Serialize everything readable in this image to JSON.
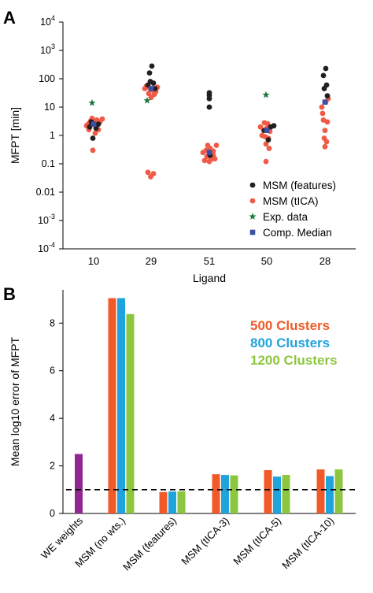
{
  "colors": {
    "features": "#231f20",
    "tica": "#f05a46",
    "exp": "#1a7a3a",
    "median": "#3b4fa3",
    "c500": "#f05a28",
    "c800": "#1fa3dc",
    "c1200": "#8cc63f",
    "we": "#92278f",
    "axis": "#000000"
  },
  "chart_data": [
    {
      "panel": "A",
      "type": "scatter",
      "ylabel": "MFPT [min]",
      "xlabel": "Ligand",
      "yscale": "log",
      "ylim": [
        0.0001,
        10000
      ],
      "yticks": [
        {
          "v": 10000,
          "b": "10",
          "e": "4"
        },
        {
          "v": 1000,
          "b": "10",
          "e": "3"
        },
        {
          "v": 100,
          "b": "100",
          "e": ""
        },
        {
          "v": 10,
          "b": "10",
          "e": ""
        },
        {
          "v": 1,
          "b": "1",
          "e": ""
        },
        {
          "v": 0.1,
          "b": "0.1",
          "e": ""
        },
        {
          "v": 0.01,
          "b": "0.01",
          "e": ""
        },
        {
          "v": 0.001,
          "b": "10",
          "e": "-3"
        },
        {
          "v": 0.0001,
          "b": "10",
          "e": "-4"
        }
      ],
      "categories": [
        "10",
        "29",
        "51",
        "50",
        "28"
      ],
      "series": [
        {
          "name": "MSM (features)",
          "marker": "circle",
          "color_key": "features",
          "points": [
            {
              "cat": 0,
              "dx": -0.5,
              "y": 2.0
            },
            {
              "cat": 0,
              "dx": 0.3,
              "y": 1.8
            },
            {
              "cat": 0,
              "dx": -0.1,
              "y": 0.8
            },
            {
              "cat": 0,
              "dx": 0.6,
              "y": 2.5
            },
            {
              "cat": 0,
              "dx": -0.3,
              "y": 3.0
            },
            {
              "cat": 1,
              "dx": 0.1,
              "y": 280
            },
            {
              "cat": 1,
              "dx": -0.2,
              "y": 160
            },
            {
              "cat": 1,
              "dx": 0.3,
              "y": 70
            },
            {
              "cat": 1,
              "dx": -0.4,
              "y": 60
            },
            {
              "cat": 1,
              "dx": 0.5,
              "y": 45
            },
            {
              "cat": 1,
              "dx": -0.1,
              "y": 80
            },
            {
              "cat": 2,
              "dx": 0.0,
              "y": 32
            },
            {
              "cat": 2,
              "dx": 0.0,
              "y": 26
            },
            {
              "cat": 2,
              "dx": 0.0,
              "y": 20
            },
            {
              "cat": 2,
              "dx": 0.0,
              "y": 10
            },
            {
              "cat": 2,
              "dx": 0.1,
              "y": 0.2
            },
            {
              "cat": 3,
              "dx": 0.5,
              "y": 2.0
            },
            {
              "cat": 3,
              "dx": 0.9,
              "y": 2.2
            },
            {
              "cat": 3,
              "dx": -0.3,
              "y": 1.5
            },
            {
              "cat": 3,
              "dx": 0.2,
              "y": 0.7
            },
            {
              "cat": 4,
              "dx": 0.1,
              "y": 230
            },
            {
              "cat": 4,
              "dx": -0.2,
              "y": 130
            },
            {
              "cat": 4,
              "dx": 0.2,
              "y": 60
            },
            {
              "cat": 4,
              "dx": -0.1,
              "y": 45
            },
            {
              "cat": 4,
              "dx": 0.3,
              "y": 25
            }
          ]
        },
        {
          "name": "MSM (tICA)",
          "marker": "circle",
          "color_key": "tica",
          "points": [
            {
              "cat": 0,
              "dx": -0.7,
              "y": 2.5
            },
            {
              "cat": 0,
              "dx": -0.4,
              "y": 3.2
            },
            {
              "cat": 0,
              "dx": 0.0,
              "y": 2.8
            },
            {
              "cat": 0,
              "dx": 0.4,
              "y": 3.5
            },
            {
              "cat": 0,
              "dx": 0.8,
              "y": 3.0
            },
            {
              "cat": 0,
              "dx": -0.6,
              "y": 1.6
            },
            {
              "cat": 0,
              "dx": 0.2,
              "y": 1.2
            },
            {
              "cat": 0,
              "dx": 0.6,
              "y": 1.6
            },
            {
              "cat": 0,
              "dx": -0.2,
              "y": 4.0
            },
            {
              "cat": 0,
              "dx": 1.1,
              "y": 3.8
            },
            {
              "cat": 0,
              "dx": -0.1,
              "y": 0.3
            },
            {
              "cat": 0,
              "dx": -0.9,
              "y": 2.2
            },
            {
              "cat": 1,
              "dx": -0.6,
              "y": 55
            },
            {
              "cat": 1,
              "dx": -0.2,
              "y": 48
            },
            {
              "cat": 1,
              "dx": 0.2,
              "y": 40
            },
            {
              "cat": 1,
              "dx": 0.6,
              "y": 35
            },
            {
              "cat": 1,
              "dx": -0.3,
              "y": 30
            },
            {
              "cat": 1,
              "dx": 0.4,
              "y": 28
            },
            {
              "cat": 1,
              "dx": 0.0,
              "y": 22
            },
            {
              "cat": 1,
              "dx": -0.8,
              "y": 45
            },
            {
              "cat": 1,
              "dx": 0.8,
              "y": 50
            },
            {
              "cat": 1,
              "dx": -0.4,
              "y": 0.05
            },
            {
              "cat": 1,
              "dx": -0.05,
              "y": 0.035
            },
            {
              "cat": 1,
              "dx": 0.3,
              "y": 0.045
            },
            {
              "cat": 2,
              "dx": -0.8,
              "y": 0.25
            },
            {
              "cat": 2,
              "dx": -0.4,
              "y": 0.3
            },
            {
              "cat": 2,
              "dx": 0.1,
              "y": 0.35
            },
            {
              "cat": 2,
              "dx": 0.5,
              "y": 0.28
            },
            {
              "cat": 2,
              "dx": 0.9,
              "y": 0.45
            },
            {
              "cat": 2,
              "dx": -0.2,
              "y": 0.45
            },
            {
              "cat": 2,
              "dx": 0.3,
              "y": 0.15
            },
            {
              "cat": 2,
              "dx": -0.6,
              "y": 0.13
            },
            {
              "cat": 2,
              "dx": 0.7,
              "y": 0.15
            },
            {
              "cat": 2,
              "dx": 0.0,
              "y": 0.12
            },
            {
              "cat": 2,
              "dx": -0.3,
              "y": 0.18
            },
            {
              "cat": 2,
              "dx": 0.5,
              "y": 0.2
            },
            {
              "cat": 3,
              "dx": -0.8,
              "y": 2.0
            },
            {
              "cat": 3,
              "dx": -0.4,
              "y": 1.5
            },
            {
              "cat": 3,
              "dx": 0.0,
              "y": 1.8
            },
            {
              "cat": 3,
              "dx": 0.4,
              "y": 1.4
            },
            {
              "cat": 3,
              "dx": -0.6,
              "y": 1.0
            },
            {
              "cat": 3,
              "dx": -0.2,
              "y": 0.9
            },
            {
              "cat": 3,
              "dx": 0.2,
              "y": 0.8
            },
            {
              "cat": 3,
              "dx": -0.1,
              "y": 0.5
            },
            {
              "cat": 3,
              "dx": 0.3,
              "y": 0.35
            },
            {
              "cat": 3,
              "dx": -0.1,
              "y": 0.12
            },
            {
              "cat": 3,
              "dx": -0.3,
              "y": 2.8
            },
            {
              "cat": 3,
              "dx": 0.1,
              "y": 2.6
            },
            {
              "cat": 4,
              "dx": -0.4,
              "y": 10
            },
            {
              "cat": 4,
              "dx": 0.1,
              "y": 15
            },
            {
              "cat": 4,
              "dx": -0.2,
              "y": 3.5
            },
            {
              "cat": 4,
              "dx": 0.3,
              "y": 3.0
            },
            {
              "cat": 4,
              "dx": 0.0,
              "y": 1.5
            },
            {
              "cat": 4,
              "dx": -0.1,
              "y": 0.8
            },
            {
              "cat": 4,
              "dx": 0.2,
              "y": 0.6
            },
            {
              "cat": 4,
              "dx": 0.0,
              "y": 0.4
            },
            {
              "cat": 4,
              "dx": 0.4,
              "y": 20
            },
            {
              "cat": 4,
              "dx": -0.3,
              "y": 6
            }
          ]
        },
        {
          "name": "Exp. data",
          "marker": "star",
          "color_key": "exp",
          "points": [
            {
              "cat": 0,
              "dx": -0.2,
              "y": 14
            },
            {
              "cat": 1,
              "dx": -0.5,
              "y": 17
            },
            {
              "cat": 3,
              "dx": -0.1,
              "y": 27
            }
          ]
        },
        {
          "name": "Comp. Median",
          "marker": "square",
          "color_key": "median",
          "points": [
            {
              "cat": 0,
              "dx": 0.0,
              "y": 2.5
            },
            {
              "cat": 1,
              "dx": 0.0,
              "y": 45
            },
            {
              "cat": 2,
              "dx": 0.0,
              "y": 0.25
            },
            {
              "cat": 3,
              "dx": 0.0,
              "y": 1.5
            },
            {
              "cat": 4,
              "dx": 0.0,
              "y": 15
            }
          ]
        }
      ]
    },
    {
      "panel": "B",
      "type": "bar",
      "ylabel": "Mean log10 error of MFPT",
      "ylim": [
        0,
        9.4
      ],
      "yticks": [
        0,
        2,
        4,
        6,
        8
      ],
      "reference_line": 1,
      "categories": [
        "WE weights",
        "MSM (no wts.)",
        "MSM (features)",
        "MSM (tICA-3)",
        "MSM (tICA-5)",
        "MSM (tICA-10)"
      ],
      "series": [
        {
          "name": "500 Clusters",
          "color_key": "c500",
          "values": [
            null,
            9.05,
            0.9,
            1.65,
            1.82,
            1.85
          ]
        },
        {
          "name": "800 Clusters",
          "color_key": "c800",
          "values": [
            null,
            9.05,
            0.92,
            1.62,
            1.55,
            1.57
          ]
        },
        {
          "name": "1200 Clusters",
          "color_key": "c1200",
          "values": [
            null,
            8.38,
            0.93,
            1.6,
            1.62,
            1.85
          ]
        },
        {
          "name": "WE weights",
          "color_key": "we",
          "values": [
            2.5,
            null,
            null,
            null,
            null,
            null
          ]
        }
      ]
    }
  ]
}
